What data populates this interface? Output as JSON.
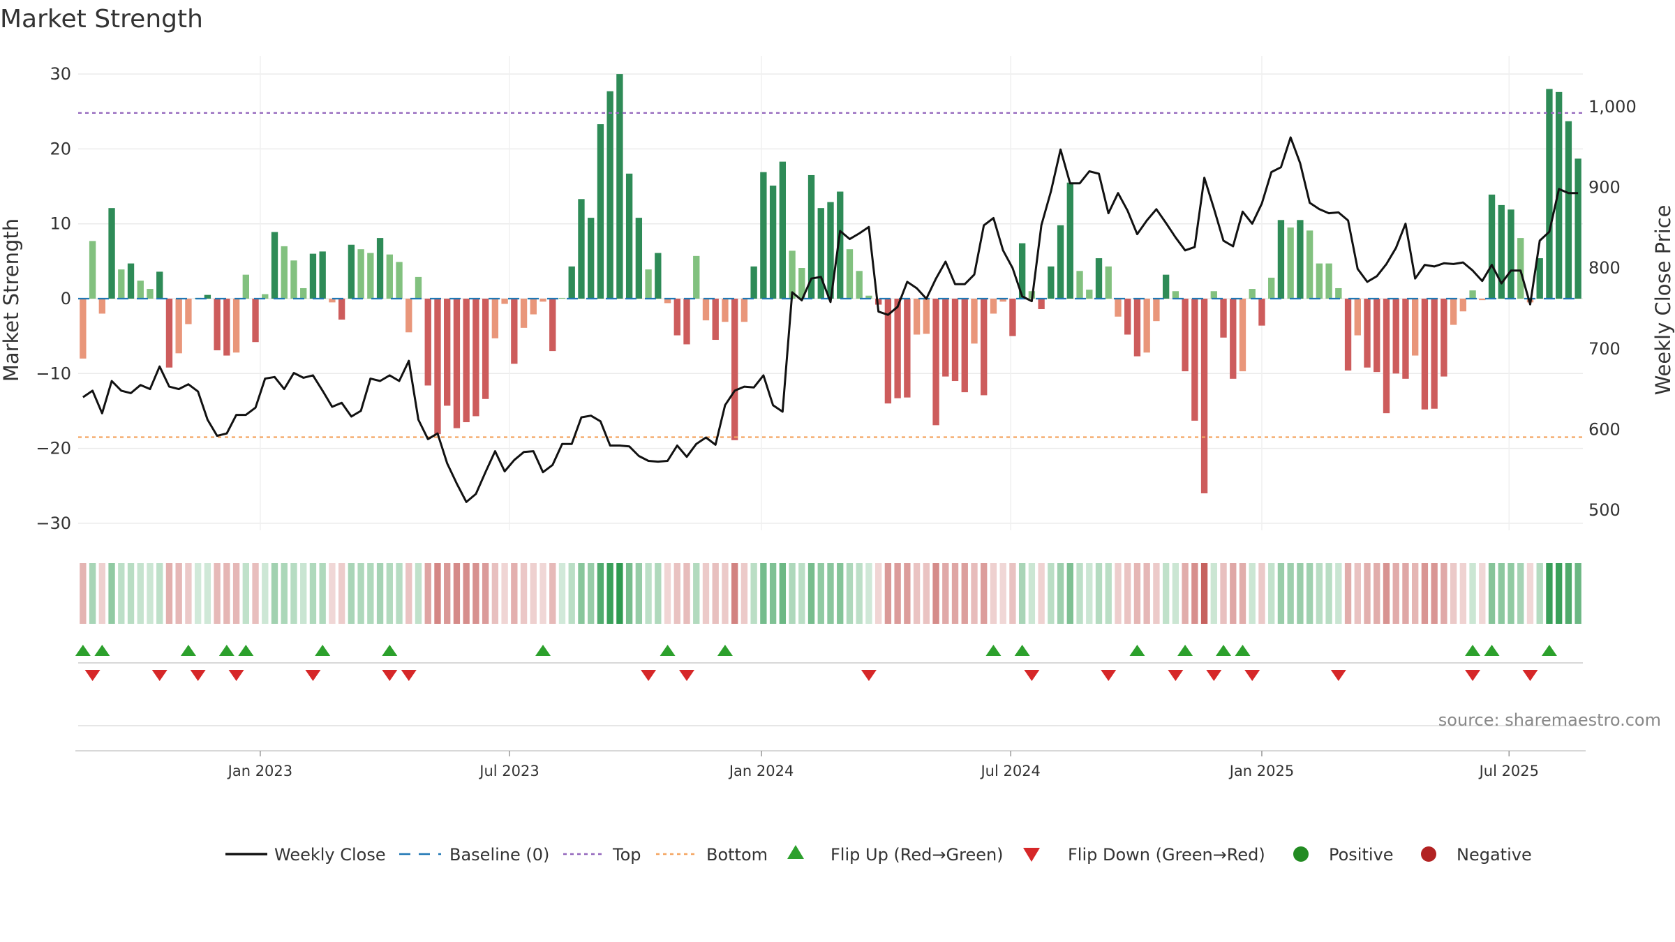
{
  "chart_data": {
    "type": "bar",
    "title": "Market Strength",
    "ylabel": "Market Strength",
    "y2label": "Weekly Close Price",
    "ylim": [
      -33,
      33
    ],
    "y_ticks": [
      30,
      20,
      10,
      0,
      -10,
      -20,
      -30
    ],
    "y_tick_labels": [
      "30",
      "20",
      "10",
      "0",
      "−10",
      "−20",
      "−30"
    ],
    "y2lim": [
      456,
      1040
    ],
    "y2_ticks": [
      1000,
      900,
      800,
      700,
      600,
      500
    ],
    "y2_tick_labels": [
      "1,000",
      "900",
      "800",
      "700",
      "600",
      "500"
    ],
    "reference_lines": {
      "baseline": 0,
      "top": 24.8,
      "bottom": -18.5
    },
    "x_tick_labels": [
      "Jan 2023",
      "Jul 2023",
      "Jan 2024",
      "Jul 2024",
      "Jan 2025",
      "Jul 2025"
    ],
    "x_tick_index": [
      18.5,
      44.5,
      70.8,
      96.8,
      123.0,
      148.8
    ],
    "strength": [
      -8,
      7.7,
      -2,
      12.1,
      3.9,
      4.7,
      2.4,
      1.3,
      3.6,
      -9.2,
      -7.3,
      -3.4,
      0.1,
      0.5,
      -6.9,
      -7.6,
      -7.2,
      3.2,
      -5.8,
      0.6,
      8.9,
      7,
      5.1,
      1.4,
      6,
      6.3,
      -0.5,
      -2.8,
      7.2,
      6.6,
      6.1,
      8.1,
      5.9,
      4.9,
      -4.5,
      2.9,
      -11.6,
      -18.1,
      -14.3,
      -17.3,
      -16.5,
      -15.7,
      -13.4,
      -5.3,
      -0.7,
      -8.7,
      -3.9,
      -2.1,
      -0.4,
      -7,
      0.1,
      4.3,
      13.3,
      10.8,
      23.3,
      27.7,
      30,
      16.7,
      10.8,
      3.9,
      6.1,
      -0.6,
      -4.9,
      -6.1,
      5.7,
      -2.9,
      -5.5,
      -3.1,
      -18.9,
      -3.1,
      4.3,
      16.9,
      15.1,
      18.3,
      6.4,
      4.1,
      16.5,
      12.1,
      12.9,
      14.3,
      6.6,
      3.7,
      0.4,
      -0.8,
      -14,
      -13.3,
      -13.2,
      -4.8,
      -4.7,
      -16.9,
      -10.4,
      -11,
      -12.5,
      -6,
      -12.9,
      -2,
      -0.4,
      -5,
      7.4,
      1,
      -1.4,
      4.3,
      9.8,
      15.5,
      3.7,
      1.2,
      5.4,
      4.3,
      -2.4,
      -4.8,
      -7.7,
      -7.2,
      -3,
      3.2,
      1,
      -9.7,
      -16.3,
      -26,
      1,
      -5.2,
      -10.7,
      -9.7,
      1.3,
      -3.6,
      2.8,
      10.5,
      9.5,
      10.5,
      9.1,
      4.7,
      4.7,
      1.4,
      -9.6,
      -4.9,
      -9.2,
      -9.8,
      -15.3,
      -10,
      -10.7,
      -7.6,
      -14.8,
      -14.7,
      -10.4,
      -3.5,
      -1.7,
      1.1,
      -0.2,
      13.9,
      12.5,
      11.9,
      8.1,
      -0.5,
      5.4,
      28,
      27.6,
      23.7,
      18.7
    ],
    "weekly_close": [
      640,
      648,
      620,
      660,
      648,
      645,
      655,
      650,
      678,
      653,
      650,
      656,
      647,
      612,
      592,
      595,
      618,
      618,
      627,
      663,
      665,
      650,
      670,
      664,
      667,
      648,
      628,
      633,
      616,
      623,
      663,
      660,
      667,
      660,
      685,
      612,
      588,
      595,
      558,
      533,
      510,
      520,
      547,
      573,
      548,
      562,
      572,
      573,
      547,
      556,
      582,
      582,
      615,
      617,
      610,
      580,
      580,
      579,
      567,
      561,
      560,
      561,
      580,
      566,
      582,
      590,
      581,
      630,
      648,
      653,
      652,
      667,
      630,
      622,
      770,
      760,
      787,
      789,
      758,
      846,
      836,
      843,
      851,
      746,
      742,
      752,
      783,
      775,
      762,
      787,
      808,
      780,
      780,
      792,
      853,
      862,
      822,
      800,
      765,
      759,
      853,
      895,
      947,
      905,
      905,
      920,
      917,
      868,
      893,
      871,
      842,
      859,
      873,
      856,
      838,
      822,
      826,
      912,
      874,
      834,
      827,
      870,
      855,
      880,
      919,
      925,
      962,
      930,
      881,
      873,
      868,
      869,
      859,
      799,
      783,
      790,
      805,
      825,
      855,
      787,
      804,
      802,
      806,
      805,
      807,
      797,
      784,
      804,
      781,
      797,
      797,
      755,
      834,
      845,
      898,
      893,
      893
    ],
    "flip_up_index": [
      0,
      2,
      11,
      15,
      17,
      25,
      32,
      48,
      61,
      67,
      95,
      98,
      110,
      115,
      119,
      121,
      145,
      147,
      153
    ],
    "flip_down_index": [
      1,
      8,
      12,
      16,
      24,
      32,
      34,
      59,
      63,
      82,
      99,
      107,
      114,
      118,
      122,
      131,
      145,
      151
    ],
    "source": "source: sharemaestro.com",
    "legend": {
      "weekly_close": "Weekly Close",
      "baseline": "Baseline (0)",
      "top": "Top",
      "bottom": "Bottom",
      "flip_up": "Flip Up (Red→Green)",
      "flip_down": "Flip Down (Green→Red)",
      "positive": "Positive",
      "negative": "Negative"
    },
    "colors": {
      "pos_strong": "#2e8b57",
      "pos_light": "#82c17f",
      "neg_strong": "#cd5c5c",
      "neg_light": "#e9967a",
      "line": "#111111",
      "baseline": "#1f77b4",
      "top": "#9467bd",
      "bottom": "#f4a460",
      "flip_up": "#2ca02c",
      "flip_down": "#d62728",
      "positive_dot": "#228b22",
      "negative_dot": "#b22222"
    }
  }
}
